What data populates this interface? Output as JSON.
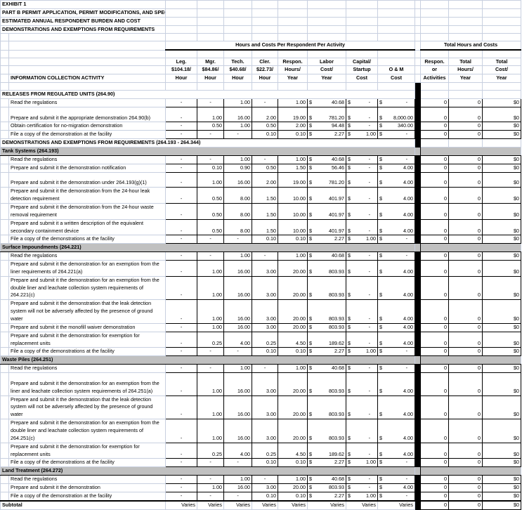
{
  "title_lines": [
    "EXHIBIT 1",
    "PART B PERMIT APPLICATION, PERMIT MODIFICATIONS, AND SPECIAL PERMITS",
    "ESTIMATED ANNUAL RESPONDENT BURDEN AND COST",
    "DEMONSTRATIONS AND EXEMPTIONS FROM REQUIREMENTS"
  ],
  "group_headers": {
    "per_respondent": "Hours and Costs Per Respondent Per Activity",
    "totals": "Total Hours and Costs"
  },
  "activity_header": "INFORMATION COLLECTION ACTIVITY",
  "columns": [
    [
      "Leg.",
      "$104.18/",
      "Hour"
    ],
    [
      "Mgr.",
      "$84.86/",
      "Hour"
    ],
    [
      "Tech.",
      "$40.68/",
      "Hour"
    ],
    [
      "Cler.",
      "$22.73/",
      "Hour"
    ],
    [
      "Respon.",
      "Hours/",
      "Year"
    ],
    [
      "Labor",
      "Cost/",
      "Year"
    ],
    [
      "Capital/",
      "Startup",
      "Cost"
    ],
    [
      "",
      "O & M",
      "Cost"
    ],
    [
      "Respon.",
      "or",
      "Activities"
    ],
    [
      "Total",
      "Hours/",
      "Year"
    ],
    [
      "Total",
      "Cost/",
      "Year"
    ]
  ],
  "currency_symbol": "$",
  "rows": [
    {
      "type": "title",
      "label": "RELEASES FROM REGULATED UNITS (264.90)"
    },
    {
      "label": "Read the regulations",
      "lines": 1,
      "v": [
        "-",
        "-",
        "1.00",
        "-",
        "1.00",
        "40.68",
        "-",
        "-"
      ],
      "t": [
        "0",
        "0",
        "$0"
      ]
    },
    {
      "label": "Prepare and submit it the appropriate demonstration 264.90(b)",
      "lines": 2,
      "v": [
        "-",
        "1.00",
        "16.00",
        "2.00",
        "19.00",
        "781.20",
        "-",
        "8,000.00"
      ],
      "t": [
        "0",
        "0",
        "$0"
      ]
    },
    {
      "label": "Obtain certification for no-migration demonstration",
      "lines": 1,
      "v": [
        "-",
        "0.50",
        "1.00",
        "0.50",
        "2.00",
        "94.48",
        "-",
        "340.00"
      ],
      "t": [
        "0",
        "0",
        "$0"
      ]
    },
    {
      "label": "File a copy of the demonstration at the facility",
      "lines": 1,
      "v": [
        "-",
        "-",
        "-",
        "0.10",
        "0.10",
        "2.27",
        "1.00",
        "-"
      ],
      "t": [
        "0",
        "0",
        "$0"
      ]
    },
    {
      "type": "title",
      "label": "DEMONSTRATIONS AND EXEMPTIONS FROM REQUIREMENTS (264.193 - 264.344)"
    },
    {
      "type": "section",
      "label": "Tank Systems (264.193)"
    },
    {
      "label": "Read the regulations",
      "lines": 1,
      "v": [
        "-",
        "-",
        "1.00",
        "-",
        "1.00",
        "40.68",
        "-",
        "-"
      ],
      "t": [
        "0",
        "0",
        "$0"
      ]
    },
    {
      "label": "Prepare and submit it the demonstration notification",
      "lines": 1,
      "v": [
        "-",
        "0.10",
        "0.90",
        "0.50",
        "1.50",
        "56.46",
        "-",
        "4.00"
      ],
      "t": [
        "0",
        "0",
        "$0"
      ]
    },
    {
      "label": "Prepare and submit it the demonstration under 264.193(g)(1)",
      "lines": 2,
      "v": [
        "-",
        "1.00",
        "16.00",
        "2.00",
        "19.00",
        "781.20",
        "-",
        "4.00"
      ],
      "t": [
        "0",
        "0",
        "$0"
      ]
    },
    {
      "label": "Prepare and submit it the demonstration from the 24-hour leak detection requirement",
      "lines": 2,
      "v": [
        "-",
        "0.50",
        "8.00",
        "1.50",
        "10.00",
        "401.97",
        "-",
        "4.00"
      ],
      "t": [
        "0",
        "0",
        "$0"
      ]
    },
    {
      "label": "Prepare and submit it the demonstration from the 24-hour waste removal requirement",
      "lines": 2,
      "v": [
        "-",
        "0.50",
        "8.00",
        "1.50",
        "10.00",
        "401.97",
        "-",
        "4.00"
      ],
      "t": [
        "0",
        "0",
        "$0"
      ]
    },
    {
      "label": "Prepare and submit it a written description of the equivalent secondary containment device",
      "lines": 2,
      "v": [
        "-",
        "0.50",
        "8.00",
        "1.50",
        "10.00",
        "401.97",
        "-",
        "4.00"
      ],
      "t": [
        "0",
        "0",
        "$0"
      ]
    },
    {
      "label": "File a copy of the demonstrations at the facility",
      "lines": 1,
      "v": [
        "-",
        "-",
        "-",
        "0.10",
        "0.10",
        "2.27",
        "1.00",
        "-"
      ],
      "t": [
        "0",
        "0",
        "$0"
      ]
    },
    {
      "type": "section",
      "label": "Surface Impoundments (264.221)"
    },
    {
      "label": "Read the regulations",
      "lines": 1,
      "v": [
        "-",
        "-",
        "1.00",
        "-",
        "1.00",
        "40.68",
        "-",
        "-"
      ],
      "t": [
        "0",
        "0",
        "$0"
      ]
    },
    {
      "label": "Prepare and submit it the demonstration for an exemption from the liner requirements of 264.221(a)",
      "lines": 2,
      "v": [
        "-",
        "1.00",
        "16.00",
        "3.00",
        "20.00",
        "803.93",
        "-",
        "4.00"
      ],
      "t": [
        "0",
        "0",
        "$0"
      ]
    },
    {
      "label": "Prepare and submit it the demonstration for an exemption from the double liner and leachate collection system requirements of 264.221(c)",
      "lines": 3,
      "v": [
        "-",
        "1.00",
        "16.00",
        "3.00",
        "20.00",
        "803.93",
        "-",
        "4.00"
      ],
      "t": [
        "0",
        "0",
        "$0"
      ]
    },
    {
      "label": "Prepare and submit it the demonstration that the leak detection system will not be adversely affected by the presence of ground water",
      "lines": 3,
      "v": [
        "-",
        "1.00",
        "16.00",
        "3.00",
        "20.00",
        "803.93",
        "-",
        "4.00"
      ],
      "t": [
        "0",
        "0",
        "$0"
      ]
    },
    {
      "label": "Prepare and submit it the monofill waiver demonstration",
      "lines": 1,
      "v": [
        "-",
        "1.00",
        "16.00",
        "3.00",
        "20.00",
        "803.93",
        "-",
        "4.00"
      ],
      "t": [
        "0",
        "0",
        "$0"
      ]
    },
    {
      "label": "Prepare and submit it the demonstration for exemption for replacement units",
      "lines": 2,
      "v": [
        "-",
        "0.25",
        "4.00",
        "0.25",
        "4.50",
        "189.62",
        "-",
        "4.00"
      ],
      "t": [
        "0",
        "0",
        "$0"
      ]
    },
    {
      "label": "File a copy of the demonstrations at the facility",
      "lines": 1,
      "v": [
        "-",
        "-",
        "-",
        "0.10",
        "0.10",
        "2.27",
        "1.00",
        "-"
      ],
      "t": [
        "0",
        "0",
        "$0"
      ]
    },
    {
      "type": "section",
      "label": "Waste Piles (264.251)"
    },
    {
      "label": "Read the regulations",
      "lines": 1,
      "v": [
        "-",
        "-",
        "1.00",
        "-",
        "1.00",
        "40.68",
        "-",
        "-"
      ],
      "t": [
        "0",
        "0",
        "$0"
      ]
    },
    {
      "label": "Prepare and submit it the demonstration for an exemption from the liner and leachate collection system requirements of 264.251(a)",
      "lines": 3,
      "v": [
        "-",
        "1.00",
        "16.00",
        "3.00",
        "20.00",
        "803.93",
        "-",
        "4.00"
      ],
      "t": [
        "0",
        "0",
        "$0"
      ]
    },
    {
      "label": "Prepare and submit it the demonstration that the leak detection system will not be adversely affected by the presence of ground water",
      "lines": 3,
      "v": [
        "-",
        "1.00",
        "16.00",
        "3.00",
        "20.00",
        "803.93",
        "-",
        "4.00"
      ],
      "t": [
        "0",
        "0",
        "$0"
      ]
    },
    {
      "label": "Prepare and submit it the demonstration for an exemption from the double liner and leachate collection system requirements of 264.251(c)",
      "lines": 3,
      "v": [
        "-",
        "1.00",
        "16.00",
        "3.00",
        "20.00",
        "803.93",
        "-",
        "4.00"
      ],
      "t": [
        "0",
        "0",
        "$0"
      ]
    },
    {
      "label": "Prepare and submit it the demonstration for exemption for replacement units",
      "lines": 2,
      "v": [
        "-",
        "0.25",
        "4.00",
        "0.25",
        "4.50",
        "189.62",
        "-",
        "4.00"
      ],
      "t": [
        "0",
        "0",
        "$0"
      ]
    },
    {
      "label": "File a copy of the demonstrations at the facility",
      "lines": 1,
      "v": [
        "-",
        "-",
        "-",
        "0.10",
        "0.10",
        "2.27",
        "1.00",
        "-"
      ],
      "t": [
        "0",
        "0",
        "$0"
      ]
    },
    {
      "type": "section",
      "label": "Land Treatment (264.272)"
    },
    {
      "label": "Read the regulations",
      "lines": 1,
      "v": [
        "-",
        "-",
        "1.00",
        "-",
        "1.00",
        "40.68",
        "-",
        "-"
      ],
      "t": [
        "0",
        "0",
        "$0"
      ]
    },
    {
      "label": "Prepare and submit it the demonstration",
      "lines": 1,
      "v": [
        "-",
        "1.00",
        "16.00",
        "3.00",
        "20.00",
        "803.93",
        "-",
        "4.00"
      ],
      "t": [
        "0",
        "0",
        "$0"
      ]
    },
    {
      "label": "File a copy of the demonstration at the facility",
      "lines": 1,
      "v": [
        "-",
        "-",
        "-",
        "0.10",
        "0.10",
        "2.27",
        "1.00",
        "-"
      ],
      "t": [
        "0",
        "0",
        "$0"
      ]
    },
    {
      "type": "subtotal",
      "label": "Subtotal",
      "v": [
        "Varies",
        "Varies",
        "Varies",
        "Varies",
        "Varies",
        "Varies",
        "Varies",
        "Varies"
      ],
      "t": [
        "0",
        "0",
        "$0"
      ]
    }
  ]
}
